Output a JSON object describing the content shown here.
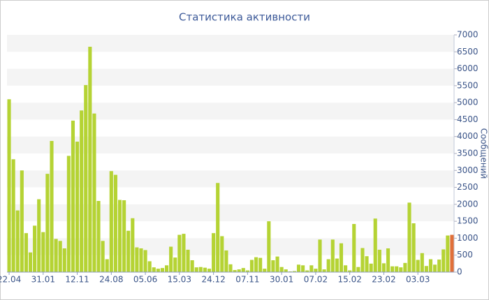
{
  "chart_data": {
    "type": "bar",
    "title": "Статистика активности",
    "y_label": "Сообщений",
    "categories": [
      "22.04",
      null,
      null,
      null,
      null,
      null,
      null,
      null,
      "31.01",
      null,
      null,
      null,
      null,
      null,
      null,
      null,
      "12.11",
      null,
      null,
      null,
      null,
      null,
      null,
      null,
      "24.08",
      null,
      null,
      null,
      null,
      null,
      null,
      null,
      "05.06",
      null,
      null,
      null,
      null,
      null,
      null,
      null,
      "15.03",
      null,
      null,
      null,
      null,
      null,
      null,
      null,
      "24.12",
      null,
      null,
      null,
      null,
      null,
      null,
      null,
      "07.11",
      null,
      null,
      null,
      null,
      null,
      null,
      null,
      "30.01",
      null,
      null,
      null,
      null,
      null,
      null,
      null,
      "07.02",
      null,
      null,
      null,
      null,
      null,
      null,
      null,
      "15.02",
      null,
      null,
      null,
      null,
      null,
      null,
      null,
      "23.02",
      null,
      null,
      null,
      null,
      null,
      null,
      null,
      "03.03",
      null,
      null,
      null,
      null,
      null,
      null,
      null,
      null
    ],
    "values": [
      5100,
      3330,
      1820,
      3000,
      1150,
      580,
      1370,
      2150,
      1180,
      2900,
      3870,
      980,
      920,
      700,
      3430,
      4470,
      3850,
      4770,
      5520,
      6650,
      4680,
      2100,
      920,
      380,
      2980,
      2870,
      2130,
      2120,
      1220,
      1590,
      730,
      700,
      650,
      320,
      140,
      100,
      120,
      200,
      750,
      430,
      1100,
      1130,
      660,
      350,
      140,
      150,
      130,
      100,
      1150,
      2630,
      1060,
      640,
      230,
      60,
      80,
      120,
      50,
      360,
      440,
      420,
      100,
      1500,
      350,
      460,
      150,
      80,
      20,
      30,
      220,
      200,
      50,
      200,
      100,
      960,
      80,
      380,
      960,
      400,
      850,
      200,
      50,
      1420,
      150,
      710,
      470,
      250,
      1580,
      660,
      260,
      700,
      170,
      170,
      140,
      270,
      2050,
      1440,
      360,
      560,
      180,
      380,
      220,
      370,
      670,
      1080,
      1100
    ],
    "color": "#b5d334",
    "last_color": "#e0703a",
    "ylim": [
      0,
      7000
    ],
    "yticks": [
      0,
      500,
      1000,
      1500,
      2000,
      2500,
      3000,
      3500,
      4000,
      4500,
      5000,
      5500,
      6000,
      6500,
      7000
    ],
    "grid": "bands",
    "y_axis_side": "right"
  }
}
